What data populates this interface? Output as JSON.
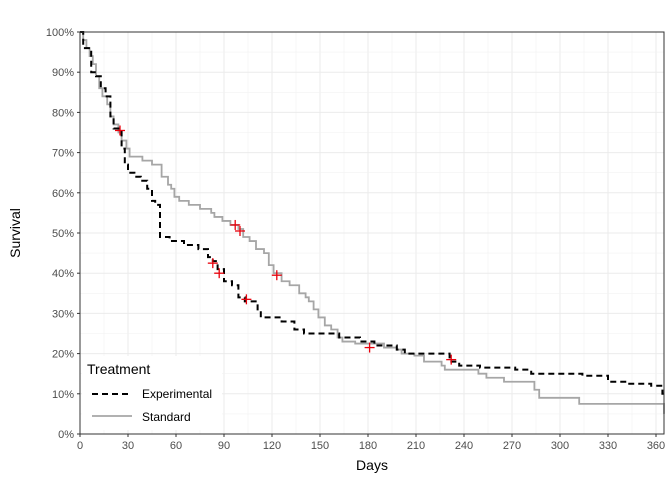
{
  "chart_data": {
    "type": "line",
    "subtype": "kaplan-meier-step",
    "xlabel": "Days",
    "ylabel": "Survival",
    "xlim": [
      0,
      365
    ],
    "ylim": [
      0,
      100
    ],
    "x_ticks": [
      0,
      30,
      60,
      90,
      120,
      150,
      180,
      210,
      240,
      270,
      300,
      330,
      360
    ],
    "y_ticks": [
      0,
      10,
      20,
      30,
      40,
      50,
      60,
      70,
      80,
      90,
      100
    ],
    "y_tick_labels": [
      "0%",
      "10%",
      "20%",
      "30%",
      "40%",
      "50%",
      "60%",
      "70%",
      "80%",
      "90%",
      "100%"
    ],
    "grid": true,
    "legend": {
      "title": "Treatment",
      "position": "bottom-left"
    },
    "series": [
      {
        "name": "Experimental",
        "color": "#000000",
        "line_style": "dashed",
        "points": [
          [
            0,
            100
          ],
          [
            2,
            96
          ],
          [
            7,
            90
          ],
          [
            10,
            89
          ],
          [
            13,
            86
          ],
          [
            16,
            84
          ],
          [
            19,
            79
          ],
          [
            21,
            76
          ],
          [
            26,
            71
          ],
          [
            28,
            67
          ],
          [
            30,
            65
          ],
          [
            34,
            64
          ],
          [
            38,
            63
          ],
          [
            42,
            61
          ],
          [
            45,
            58
          ],
          [
            47,
            57
          ],
          [
            50,
            49
          ],
          [
            56,
            48
          ],
          [
            65,
            47
          ],
          [
            74,
            46
          ],
          [
            80,
            44
          ],
          [
            83,
            43
          ],
          [
            86,
            41
          ],
          [
            90,
            38
          ],
          [
            95,
            37
          ],
          [
            99,
            34
          ],
          [
            103,
            33
          ],
          [
            111,
            31
          ],
          [
            113,
            29
          ],
          [
            126,
            28
          ],
          [
            134,
            26
          ],
          [
            140,
            25
          ],
          [
            162,
            24
          ],
          [
            175,
            23
          ],
          [
            184,
            22
          ],
          [
            198,
            21
          ],
          [
            203,
            20
          ],
          [
            231,
            18
          ],
          [
            237,
            17
          ],
          [
            250,
            16.5
          ],
          [
            272,
            16
          ],
          [
            282,
            15
          ],
          [
            314,
            14.5
          ],
          [
            330,
            13
          ],
          [
            342,
            12.5
          ],
          [
            357,
            12
          ],
          [
            364,
            10
          ],
          [
            365,
            10
          ]
        ],
        "censored": [
          [
            25,
            75.5
          ],
          [
            83,
            42.5
          ],
          [
            87,
            40
          ],
          [
            104,
            33.5
          ],
          [
            181,
            21.5
          ],
          [
            232,
            18.5
          ]
        ]
      },
      {
        "name": "Standard",
        "color": "#a6a6a6",
        "line_style": "solid",
        "points": [
          [
            0,
            100
          ],
          [
            2,
            98
          ],
          [
            4,
            96
          ],
          [
            6,
            94
          ],
          [
            8,
            92
          ],
          [
            10,
            89
          ],
          [
            12,
            86
          ],
          [
            14,
            84
          ],
          [
            17,
            82
          ],
          [
            19,
            79
          ],
          [
            21,
            77
          ],
          [
            24,
            75
          ],
          [
            26,
            73
          ],
          [
            29,
            71
          ],
          [
            31,
            69
          ],
          [
            39,
            68
          ],
          [
            45,
            67
          ],
          [
            51,
            64
          ],
          [
            55,
            62
          ],
          [
            57,
            61
          ],
          [
            59,
            59
          ],
          [
            62,
            58
          ],
          [
            68,
            57
          ],
          [
            75,
            56
          ],
          [
            82,
            55
          ],
          [
            84,
            54
          ],
          [
            89,
            53
          ],
          [
            94,
            52
          ],
          [
            99,
            51
          ],
          [
            102,
            49
          ],
          [
            106,
            48
          ],
          [
            110,
            46
          ],
          [
            115,
            45
          ],
          [
            118,
            42
          ],
          [
            121,
            40
          ],
          [
            126,
            38
          ],
          [
            131,
            37
          ],
          [
            137,
            35
          ],
          [
            141,
            34
          ],
          [
            143,
            33
          ],
          [
            146,
            31
          ],
          [
            149,
            29
          ],
          [
            153,
            27
          ],
          [
            157,
            26
          ],
          [
            161,
            24
          ],
          [
            164,
            23
          ],
          [
            172,
            22.5
          ],
          [
            190,
            21.5
          ],
          [
            198,
            21
          ],
          [
            201,
            20
          ],
          [
            209,
            19.5
          ],
          [
            215,
            18
          ],
          [
            226,
            17
          ],
          [
            228,
            16
          ],
          [
            249,
            15
          ],
          [
            254,
            14
          ],
          [
            265,
            13
          ],
          [
            284,
            11
          ],
          [
            287,
            9
          ],
          [
            312,
            7.5
          ],
          [
            365,
            7
          ],
          [
            366,
            5
          ]
        ],
        "censored": [
          [
            97,
            52
          ],
          [
            100,
            50.5
          ],
          [
            123,
            39.5
          ]
        ]
      }
    ],
    "censor_marker_color": "#e8000b"
  }
}
